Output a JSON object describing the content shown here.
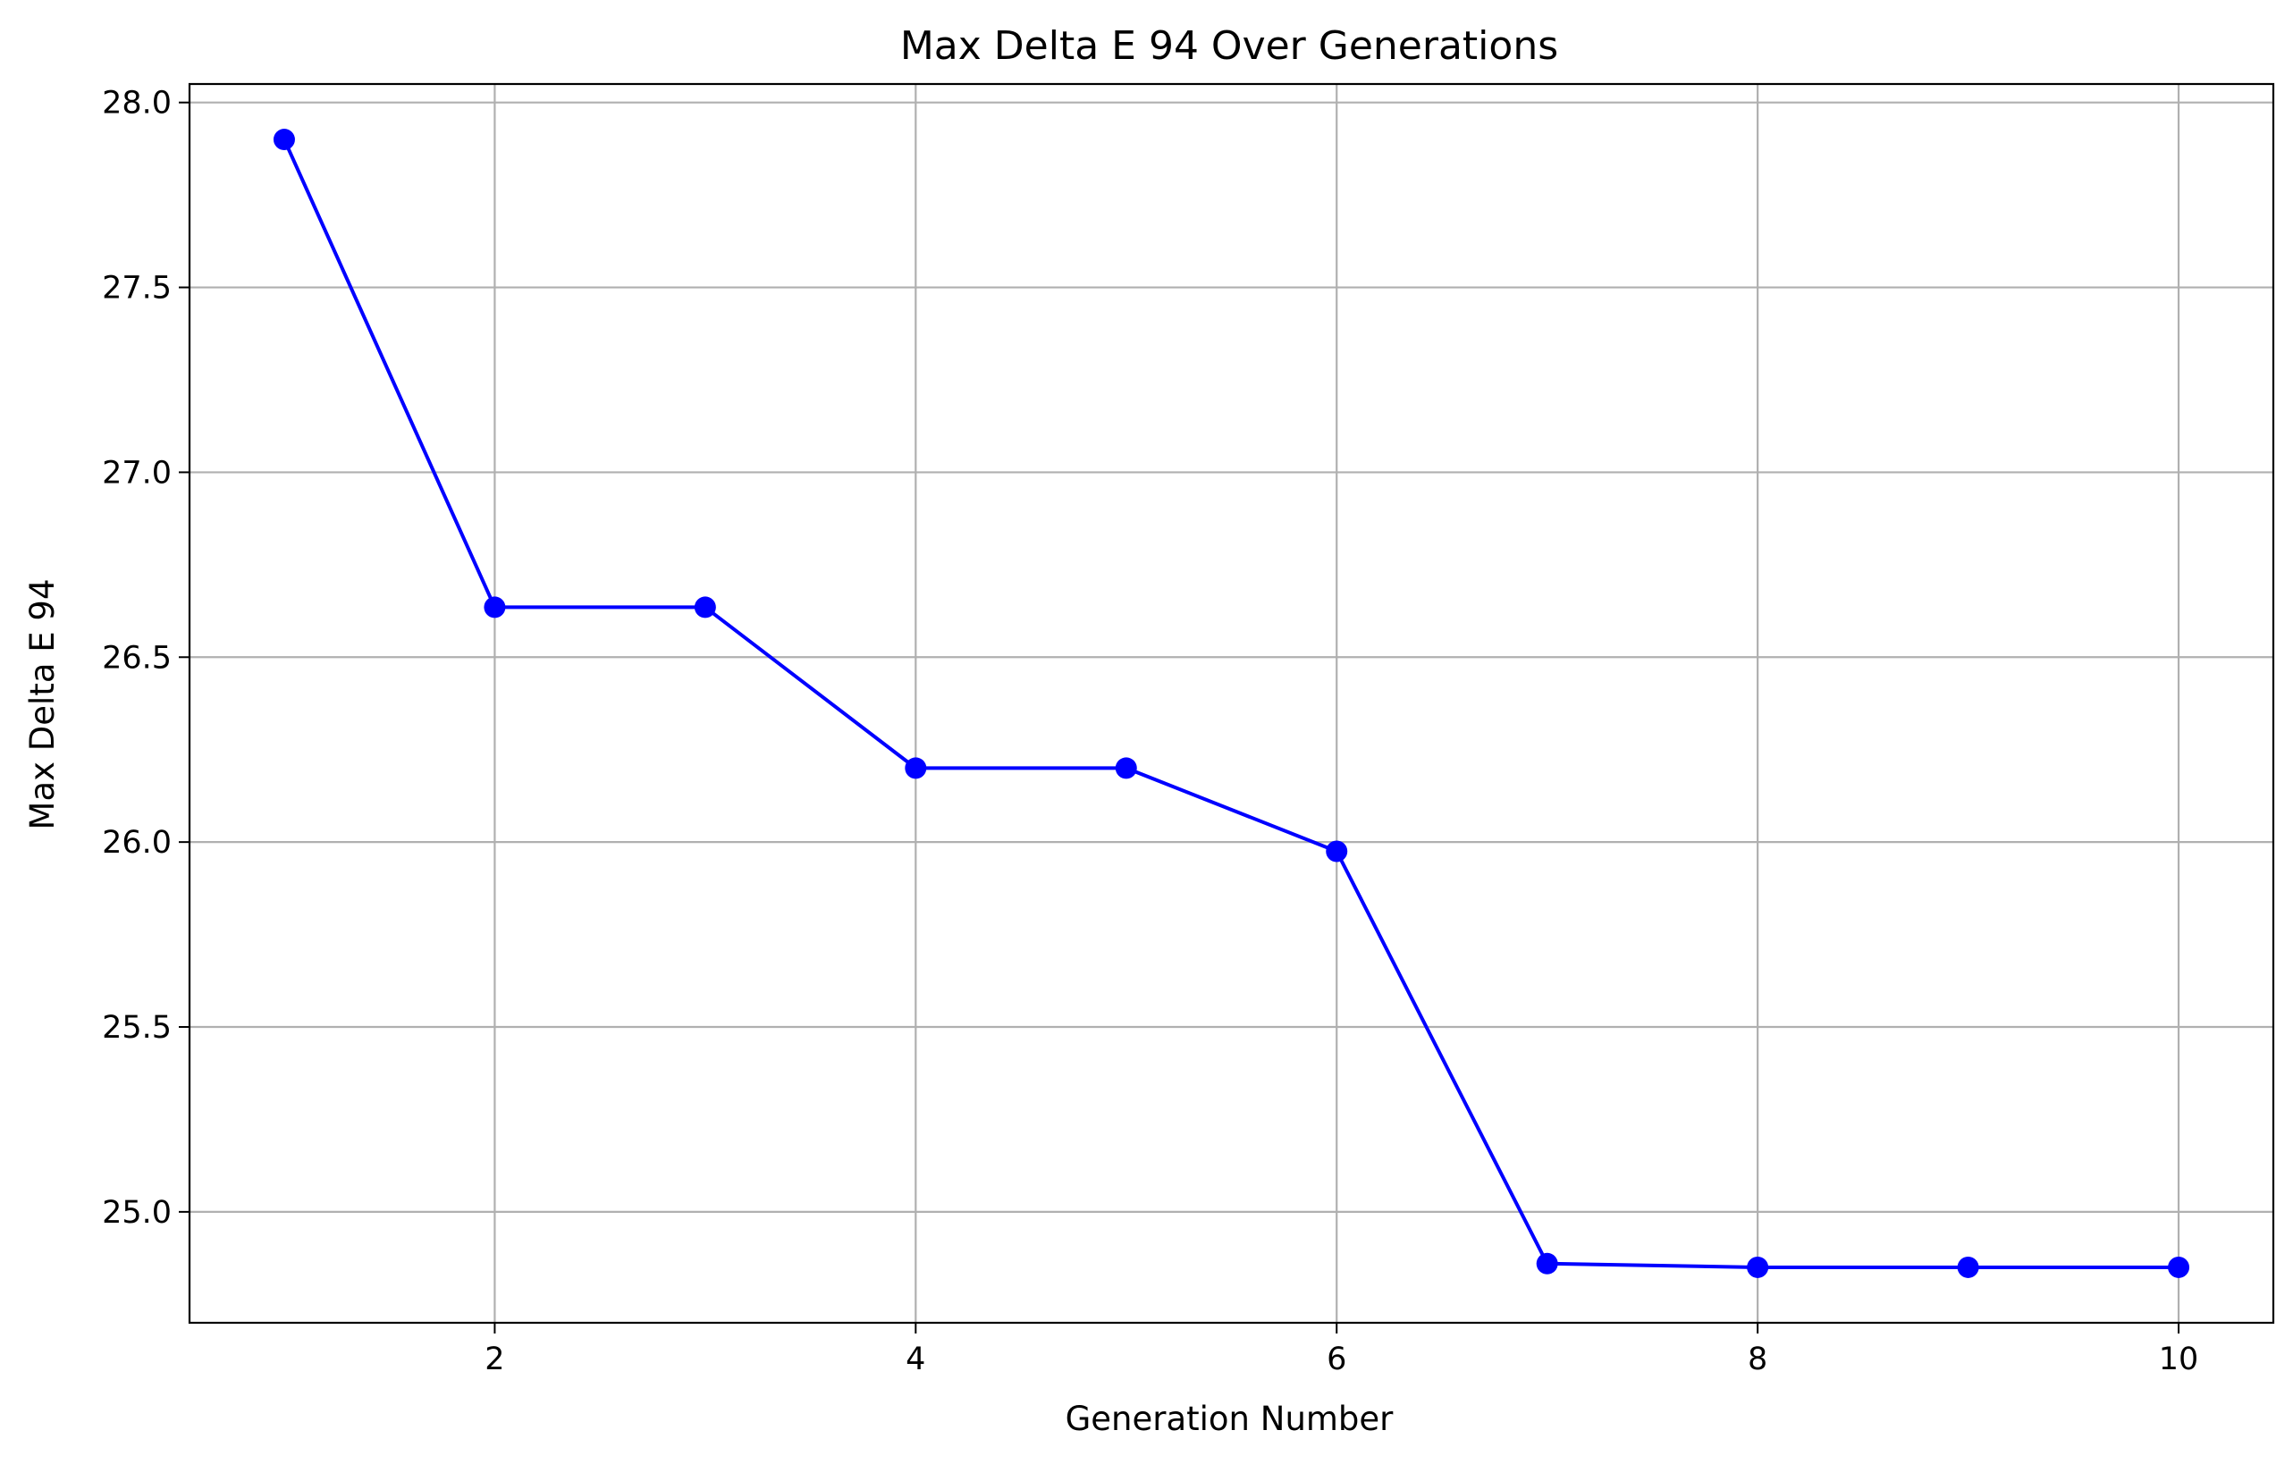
{
  "chart_data": {
    "type": "line",
    "title": "Max Delta E 94 Over Generations",
    "xlabel": "Generation Number",
    "ylabel": "Max Delta E 94",
    "xlim": [
      0.55,
      10.45
    ],
    "ylim": [
      24.7,
      28.05
    ],
    "x_ticks": [
      2,
      4,
      6,
      8,
      10
    ],
    "y_ticks": [
      25.0,
      25.5,
      26.0,
      26.5,
      27.0,
      27.5,
      28.0
    ],
    "grid": true,
    "color": "#0000ff",
    "marker": "circle",
    "series": [
      {
        "x": [
          1,
          2,
          3,
          4,
          5,
          6,
          7,
          8,
          9,
          10
        ],
        "values": [
          27.9,
          26.635,
          26.635,
          26.2,
          26.2,
          25.975,
          24.86,
          24.85,
          24.85,
          24.85
        ]
      }
    ]
  }
}
